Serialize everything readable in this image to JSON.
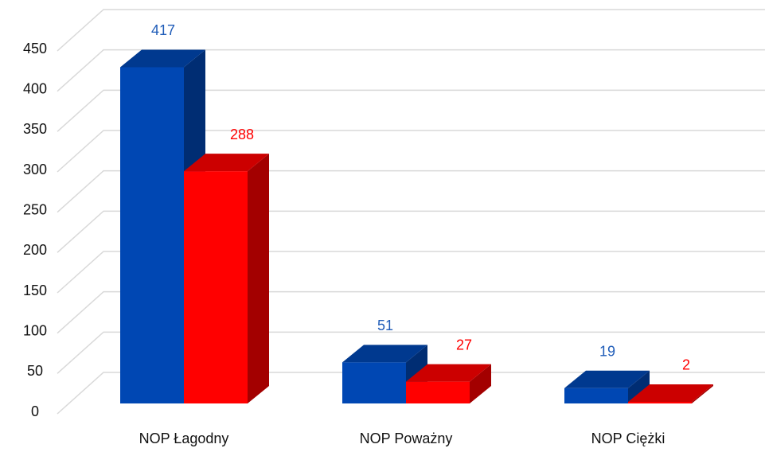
{
  "chart_data": {
    "type": "bar3d",
    "categories": [
      "NOP Łagodny",
      "NOP Poważny",
      "NOP Ciężki"
    ],
    "series": [
      {
        "color": "#0047b3",
        "values": [
          417,
          51,
          19
        ]
      },
      {
        "color": "#ff0000",
        "values": [
          288,
          27,
          2
        ]
      }
    ],
    "ylim": [
      0,
      450
    ],
    "yticks": [
      0,
      50,
      100,
      150,
      200,
      250,
      300,
      350,
      400,
      450
    ],
    "grid": true
  }
}
